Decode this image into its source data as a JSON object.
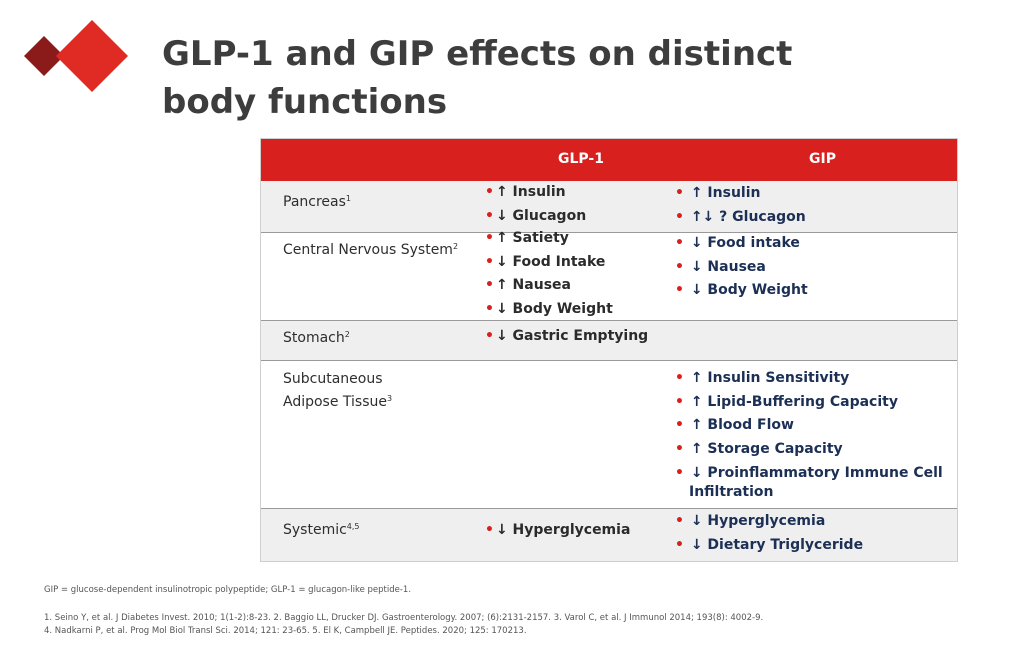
{
  "title": {
    "line1": "GLP-1 and GIP effects on distinct",
    "line2": "body functions"
  },
  "colors": {
    "accent_red": "#d8201f",
    "dark_red": "#8b1a1a",
    "gip_text": "#1c2f55"
  },
  "table": {
    "headers": {
      "glp1": "GLP-1",
      "gip": "GIP"
    },
    "rows": [
      {
        "organ": "Pancreas",
        "sup": "1",
        "glp1": [
          "↑ Insulin",
          "↓ Glucagon"
        ],
        "gip": [
          "↑ Insulin",
          "↑↓ ? Glucagon"
        ]
      },
      {
        "organ": "Central Nervous System",
        "sup": "2",
        "glp1": [
          "↑ Satiety",
          "↓ Food Intake",
          "↑ Nausea",
          "↓ Body Weight"
        ],
        "gip": [
          "↓ Food intake",
          "↓ Nausea",
          "↓ Body Weight"
        ]
      },
      {
        "organ": "Stomach",
        "sup": "2",
        "glp1": [
          "↓ Gastric Emptying"
        ],
        "gip": []
      },
      {
        "organ_line1": "Subcutaneous",
        "organ_line2": "Adipose Tissue",
        "sup": "3",
        "glp1": [],
        "gip": [
          "↑ Insulin Sensitivity",
          "↑ Lipid-Buffering Capacity",
          "↑ Blood Flow",
          "↑ Storage Capacity",
          "↓ Proinflammatory Immune Cell Infiltration"
        ]
      },
      {
        "organ": "Systemic",
        "sup": "4,5",
        "glp1": [
          "↓ Hyperglycemia"
        ],
        "gip": [
          "↓ Hyperglycemia",
          "↓ Dietary Triglyceride"
        ]
      }
    ]
  },
  "footnotes": {
    "abbrev": "GIP = glucose-dependent insulinotropic polypeptide; GLP-1 = glucagon-like peptide-1.",
    "refs_line1": "1. Seino Y, et al. J Diabetes Invest. 2010; 1(1-2):8-23. 2. Baggio LL, Drucker DJ. Gastroenterology. 2007; (6):2131-2157. 3. Varol C, et al. J Immunol 2014; 193(8): 4002-9.",
    "refs_line2": "4. Nadkarni P, et al. Prog Mol Biol Transl Sci. 2014; 121: 23-65. 5. El K, Campbell JE. Peptides. 2020; 125: 170213."
  }
}
